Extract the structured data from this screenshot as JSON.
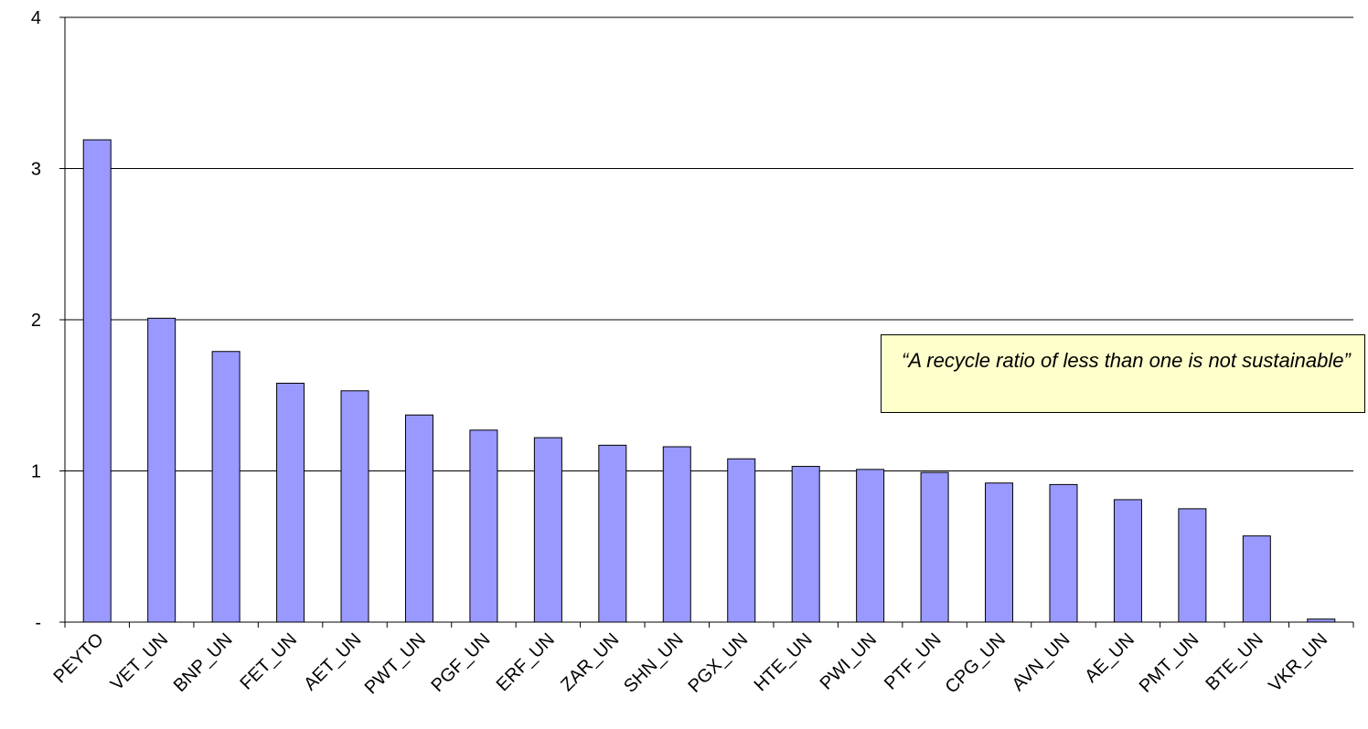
{
  "chart_data": {
    "type": "bar",
    "categories": [
      "PEYTO",
      "VET_UN",
      "BNP_UN",
      "FET_UN",
      "AET_UN",
      "PWT_UN",
      "PGF_UN",
      "ERF_UN",
      "ZAR_UN",
      "SHN_UN",
      "PGX_UN",
      "HTE_UN",
      "PWI_UN",
      "PTF_UN",
      "CPG_UN",
      "AVN_UN",
      "AE_UN",
      "PMT_UN",
      "BTE_UN",
      "VKR_UN"
    ],
    "values": [
      3.19,
      2.01,
      1.79,
      1.58,
      1.53,
      1.37,
      1.27,
      1.22,
      1.17,
      1.16,
      1.08,
      1.03,
      1.01,
      0.99,
      0.92,
      0.91,
      0.81,
      0.75,
      0.57,
      0.02
    ],
    "ylim": [
      0,
      4
    ],
    "yticks": [
      {
        "value": 0,
        "label": "-"
      },
      {
        "value": 1,
        "label": "1"
      },
      {
        "value": 2,
        "label": "2"
      },
      {
        "value": 3,
        "label": "3"
      },
      {
        "value": 4,
        "label": "4"
      }
    ],
    "grid": true,
    "bar_color": "#9999ff",
    "annotation": "“A recycle ratio of less than one is not sustainable”"
  }
}
